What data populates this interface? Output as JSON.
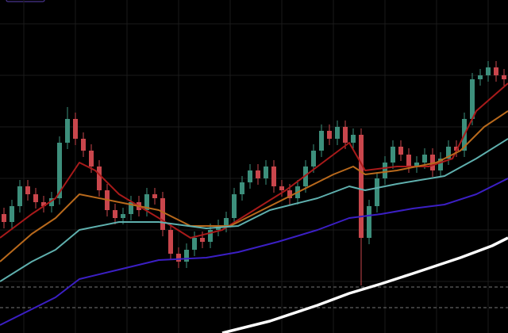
{
  "chart_data": {
    "type": "candlestick",
    "xlim": [
      0,
      64
    ],
    "ylim": [
      0,
      420
    ],
    "up_color": "#3d8f7c",
    "down_color": "#c9464c",
    "grid_color": "#1a1a1a",
    "ygrid": [
      390,
      325,
      260,
      195,
      130,
      65
    ],
    "xgrid": [
      3,
      9.5,
      16,
      22.5,
      29,
      35.5,
      42,
      48.5,
      55,
      61.5
    ],
    "price_lines": [
      58,
      32
    ],
    "open": [
      150,
      140,
      160,
      185,
      175,
      165,
      160,
      170,
      240,
      270,
      245,
      230,
      210,
      180,
      155,
      145,
      150,
      165,
      155,
      175,
      170,
      130,
      100,
      90,
      105,
      120,
      115,
      130,
      135,
      145,
      175,
      190,
      205,
      195,
      210,
      185,
      180,
      170,
      185,
      210,
      230,
      255,
      245,
      260,
      240,
      250,
      120,
      160,
      195,
      215,
      235,
      225,
      210,
      215,
      225,
      205,
      220,
      235,
      230,
      270,
      320,
      325,
      335,
      325
    ],
    "high": [
      158,
      168,
      193,
      193,
      183,
      173,
      178,
      248,
      285,
      278,
      253,
      238,
      218,
      188,
      163,
      158,
      173,
      173,
      183,
      183,
      178,
      138,
      108,
      113,
      128,
      128,
      138,
      143,
      153,
      183,
      198,
      213,
      213,
      218,
      218,
      193,
      188,
      193,
      218,
      238,
      263,
      263,
      268,
      268,
      258,
      258,
      168,
      203,
      223,
      243,
      243,
      233,
      223,
      233,
      233,
      228,
      243,
      243,
      278,
      328,
      333,
      343,
      343,
      333
    ],
    "low": [
      132,
      132,
      152,
      167,
      157,
      152,
      152,
      162,
      232,
      237,
      222,
      202,
      172,
      147,
      137,
      137,
      142,
      147,
      147,
      162,
      122,
      92,
      82,
      82,
      97,
      107,
      107,
      122,
      127,
      137,
      167,
      182,
      187,
      187,
      177,
      172,
      162,
      162,
      177,
      202,
      222,
      237,
      237,
      232,
      232,
      60,
      112,
      152,
      187,
      207,
      217,
      202,
      202,
      207,
      197,
      197,
      212,
      222,
      222,
      262,
      312,
      317,
      317,
      312
    ],
    "close": [
      140,
      160,
      185,
      175,
      165,
      160,
      170,
      240,
      270,
      245,
      230,
      210,
      180,
      155,
      145,
      150,
      165,
      155,
      175,
      170,
      130,
      100,
      90,
      105,
      120,
      115,
      130,
      135,
      145,
      175,
      190,
      205,
      195,
      210,
      185,
      180,
      170,
      185,
      210,
      230,
      255,
      245,
      260,
      240,
      250,
      120,
      160,
      195,
      215,
      235,
      225,
      210,
      215,
      225,
      205,
      220,
      235,
      230,
      270,
      320,
      325,
      335,
      325,
      320
    ],
    "series": [
      {
        "color": "#a81a1a",
        "width": 2,
        "x": [
          0,
          4,
          7,
          10,
          12,
          15,
          20,
          24,
          28,
          32,
          36,
          40,
          44,
          46,
          50,
          54,
          57,
          60,
          64
        ],
        "values": [
          120,
          150,
          170,
          215,
          205,
          175,
          145,
          120,
          130,
          155,
          180,
          210,
          240,
          205,
          210,
          210,
          220,
          280,
          315
        ]
      },
      {
        "color": "#b8691c",
        "width": 2,
        "x": [
          0,
          4,
          7,
          10,
          15,
          20,
          24,
          29,
          33,
          38,
          42,
          44.5,
          46,
          50,
          55,
          58,
          61,
          64
        ],
        "values": [
          90,
          125,
          145,
          175,
          165,
          155,
          135,
          135,
          155,
          180,
          200,
          210,
          200,
          205,
          215,
          230,
          260,
          280
        ]
      },
      {
        "color": "#5fb0ae",
        "width": 2,
        "x": [
          0,
          4,
          7,
          10,
          15,
          20,
          26,
          30,
          34,
          40,
          44,
          46,
          50,
          56,
          60,
          64
        ],
        "values": [
          65,
          90,
          105,
          130,
          140,
          140,
          132,
          135,
          155,
          170,
          185,
          180,
          188,
          198,
          220,
          245
        ]
      },
      {
        "color": "#3b1fc4",
        "width": 2,
        "x": [
          0,
          4,
          7,
          10,
          15,
          20,
          26,
          30,
          35,
          40,
          44,
          48,
          52,
          56,
          60,
          64
        ],
        "values": [
          10,
          30,
          45,
          68,
          80,
          92,
          95,
          102,
          115,
          130,
          145,
          150,
          157,
          162,
          175,
          195
        ]
      },
      {
        "color": "#ffffff",
        "width": 3.5,
        "x": [
          28,
          34,
          40,
          44,
          48,
          52,
          58,
          62,
          64
        ],
        "values": [
          0,
          15,
          35,
          50,
          62,
          75,
          95,
          110,
          120
        ]
      }
    ]
  }
}
